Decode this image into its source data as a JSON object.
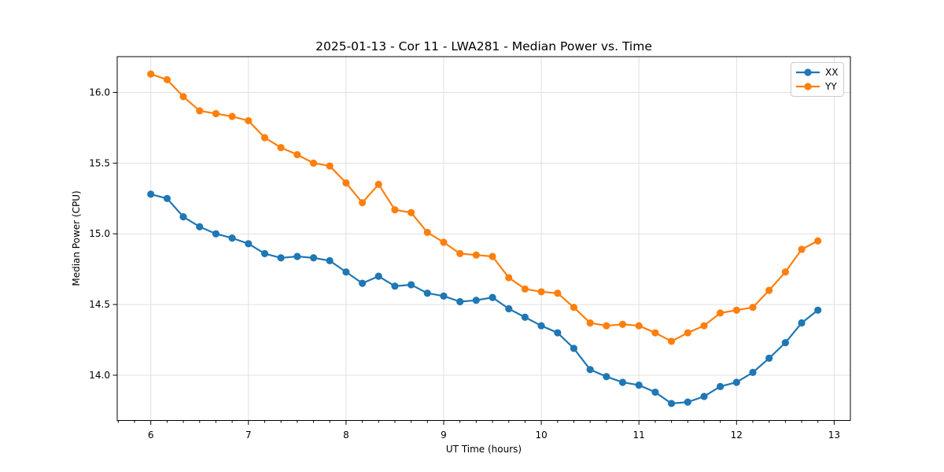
{
  "chart_data": {
    "type": "line",
    "title": "2025-01-13 - Cor 11 - LWA281 - Median Power vs. Time",
    "xlabel": "UT Time (hours)",
    "ylabel": "Median Power (CPU)",
    "x": [
      6.0,
      6.167,
      6.333,
      6.5,
      6.667,
      6.833,
      7.0,
      7.167,
      7.333,
      7.5,
      7.667,
      7.833,
      8.0,
      8.167,
      8.333,
      8.5,
      8.667,
      8.833,
      9.0,
      9.167,
      9.333,
      9.5,
      9.667,
      9.833,
      10.0,
      10.167,
      10.333,
      10.5,
      10.667,
      10.833,
      11.0,
      11.167,
      11.333,
      11.5,
      11.667,
      11.833,
      12.0,
      12.167,
      12.333,
      12.5,
      12.667,
      12.833
    ],
    "series": [
      {
        "name": "XX",
        "color": "#1f77b4",
        "values": [
          15.28,
          15.25,
          15.12,
          15.05,
          15.0,
          14.97,
          14.93,
          14.86,
          14.83,
          14.84,
          14.83,
          14.81,
          14.73,
          14.65,
          14.7,
          14.63,
          14.64,
          14.58,
          14.56,
          14.52,
          14.53,
          14.55,
          14.47,
          14.41,
          14.35,
          14.3,
          14.19,
          14.04,
          13.99,
          13.95,
          13.93,
          13.88,
          13.8,
          13.81,
          13.85,
          13.92,
          13.95,
          14.02,
          14.12,
          14.23,
          14.37,
          14.46
        ]
      },
      {
        "name": "YY",
        "color": "#ff7f0e",
        "values": [
          16.13,
          16.09,
          15.97,
          15.87,
          15.85,
          15.83,
          15.8,
          15.68,
          15.61,
          15.56,
          15.5,
          15.48,
          15.36,
          15.22,
          15.35,
          15.17,
          15.15,
          15.01,
          14.94,
          14.86,
          14.85,
          14.84,
          14.69,
          14.61,
          14.59,
          14.58,
          14.48,
          14.37,
          14.35,
          14.36,
          14.35,
          14.3,
          14.24,
          14.3,
          14.35,
          14.44,
          14.46,
          14.48,
          14.6,
          14.73,
          14.89,
          14.95
        ]
      }
    ],
    "xlim": [
      5.656,
      13.166
    ],
    "ylim": [
      13.68,
      16.253
    ],
    "xticks": [
      6,
      7,
      8,
      9,
      10,
      11,
      12,
      13
    ],
    "yticks": [
      14.0,
      14.5,
      15.0,
      15.5,
      16.0
    ],
    "minor_xtick_step": 0.16667,
    "grid": true,
    "legend_position": "upper right"
  },
  "colors": {
    "grid": "#e0e0e0",
    "spine": "#000000",
    "tick": "#000000",
    "background": "#ffffff"
  }
}
